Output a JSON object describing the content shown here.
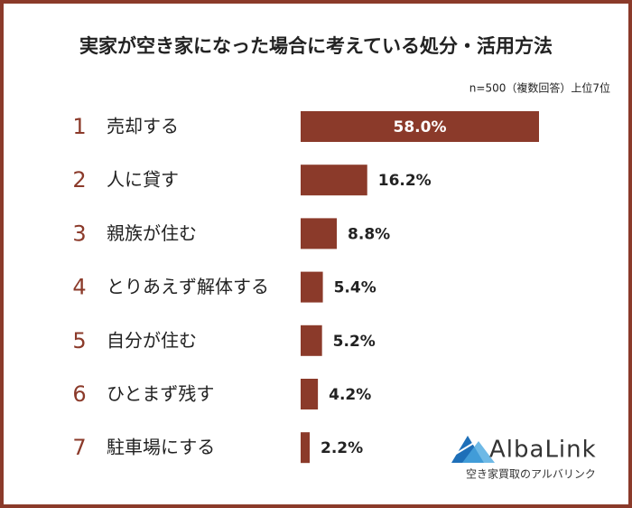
{
  "chart_data": {
    "type": "bar",
    "orientation": "horizontal",
    "title": "実家が空き家になった場合に考えている処分・活用方法",
    "subtitle": "n=500（複数回答）上位7位",
    "ranks": [
      1,
      2,
      3,
      4,
      5,
      6,
      7
    ],
    "categories": [
      "売却する",
      "人に貸す",
      "親族が住む",
      "とりあえず解体する",
      "自分が住む",
      "ひとまず残す",
      "駐車場にする"
    ],
    "values": [
      58.0,
      16.2,
      8.8,
      5.4,
      5.2,
      4.2,
      2.2
    ],
    "value_labels": [
      "58.0%",
      "16.2%",
      "8.8%",
      "5.4%",
      "5.2%",
      "4.2%",
      "2.2%"
    ],
    "color": "#8b3a2a",
    "logo": {
      "name": "AlbaLink",
      "tagline": "空き家買取のアルバリンク"
    }
  }
}
